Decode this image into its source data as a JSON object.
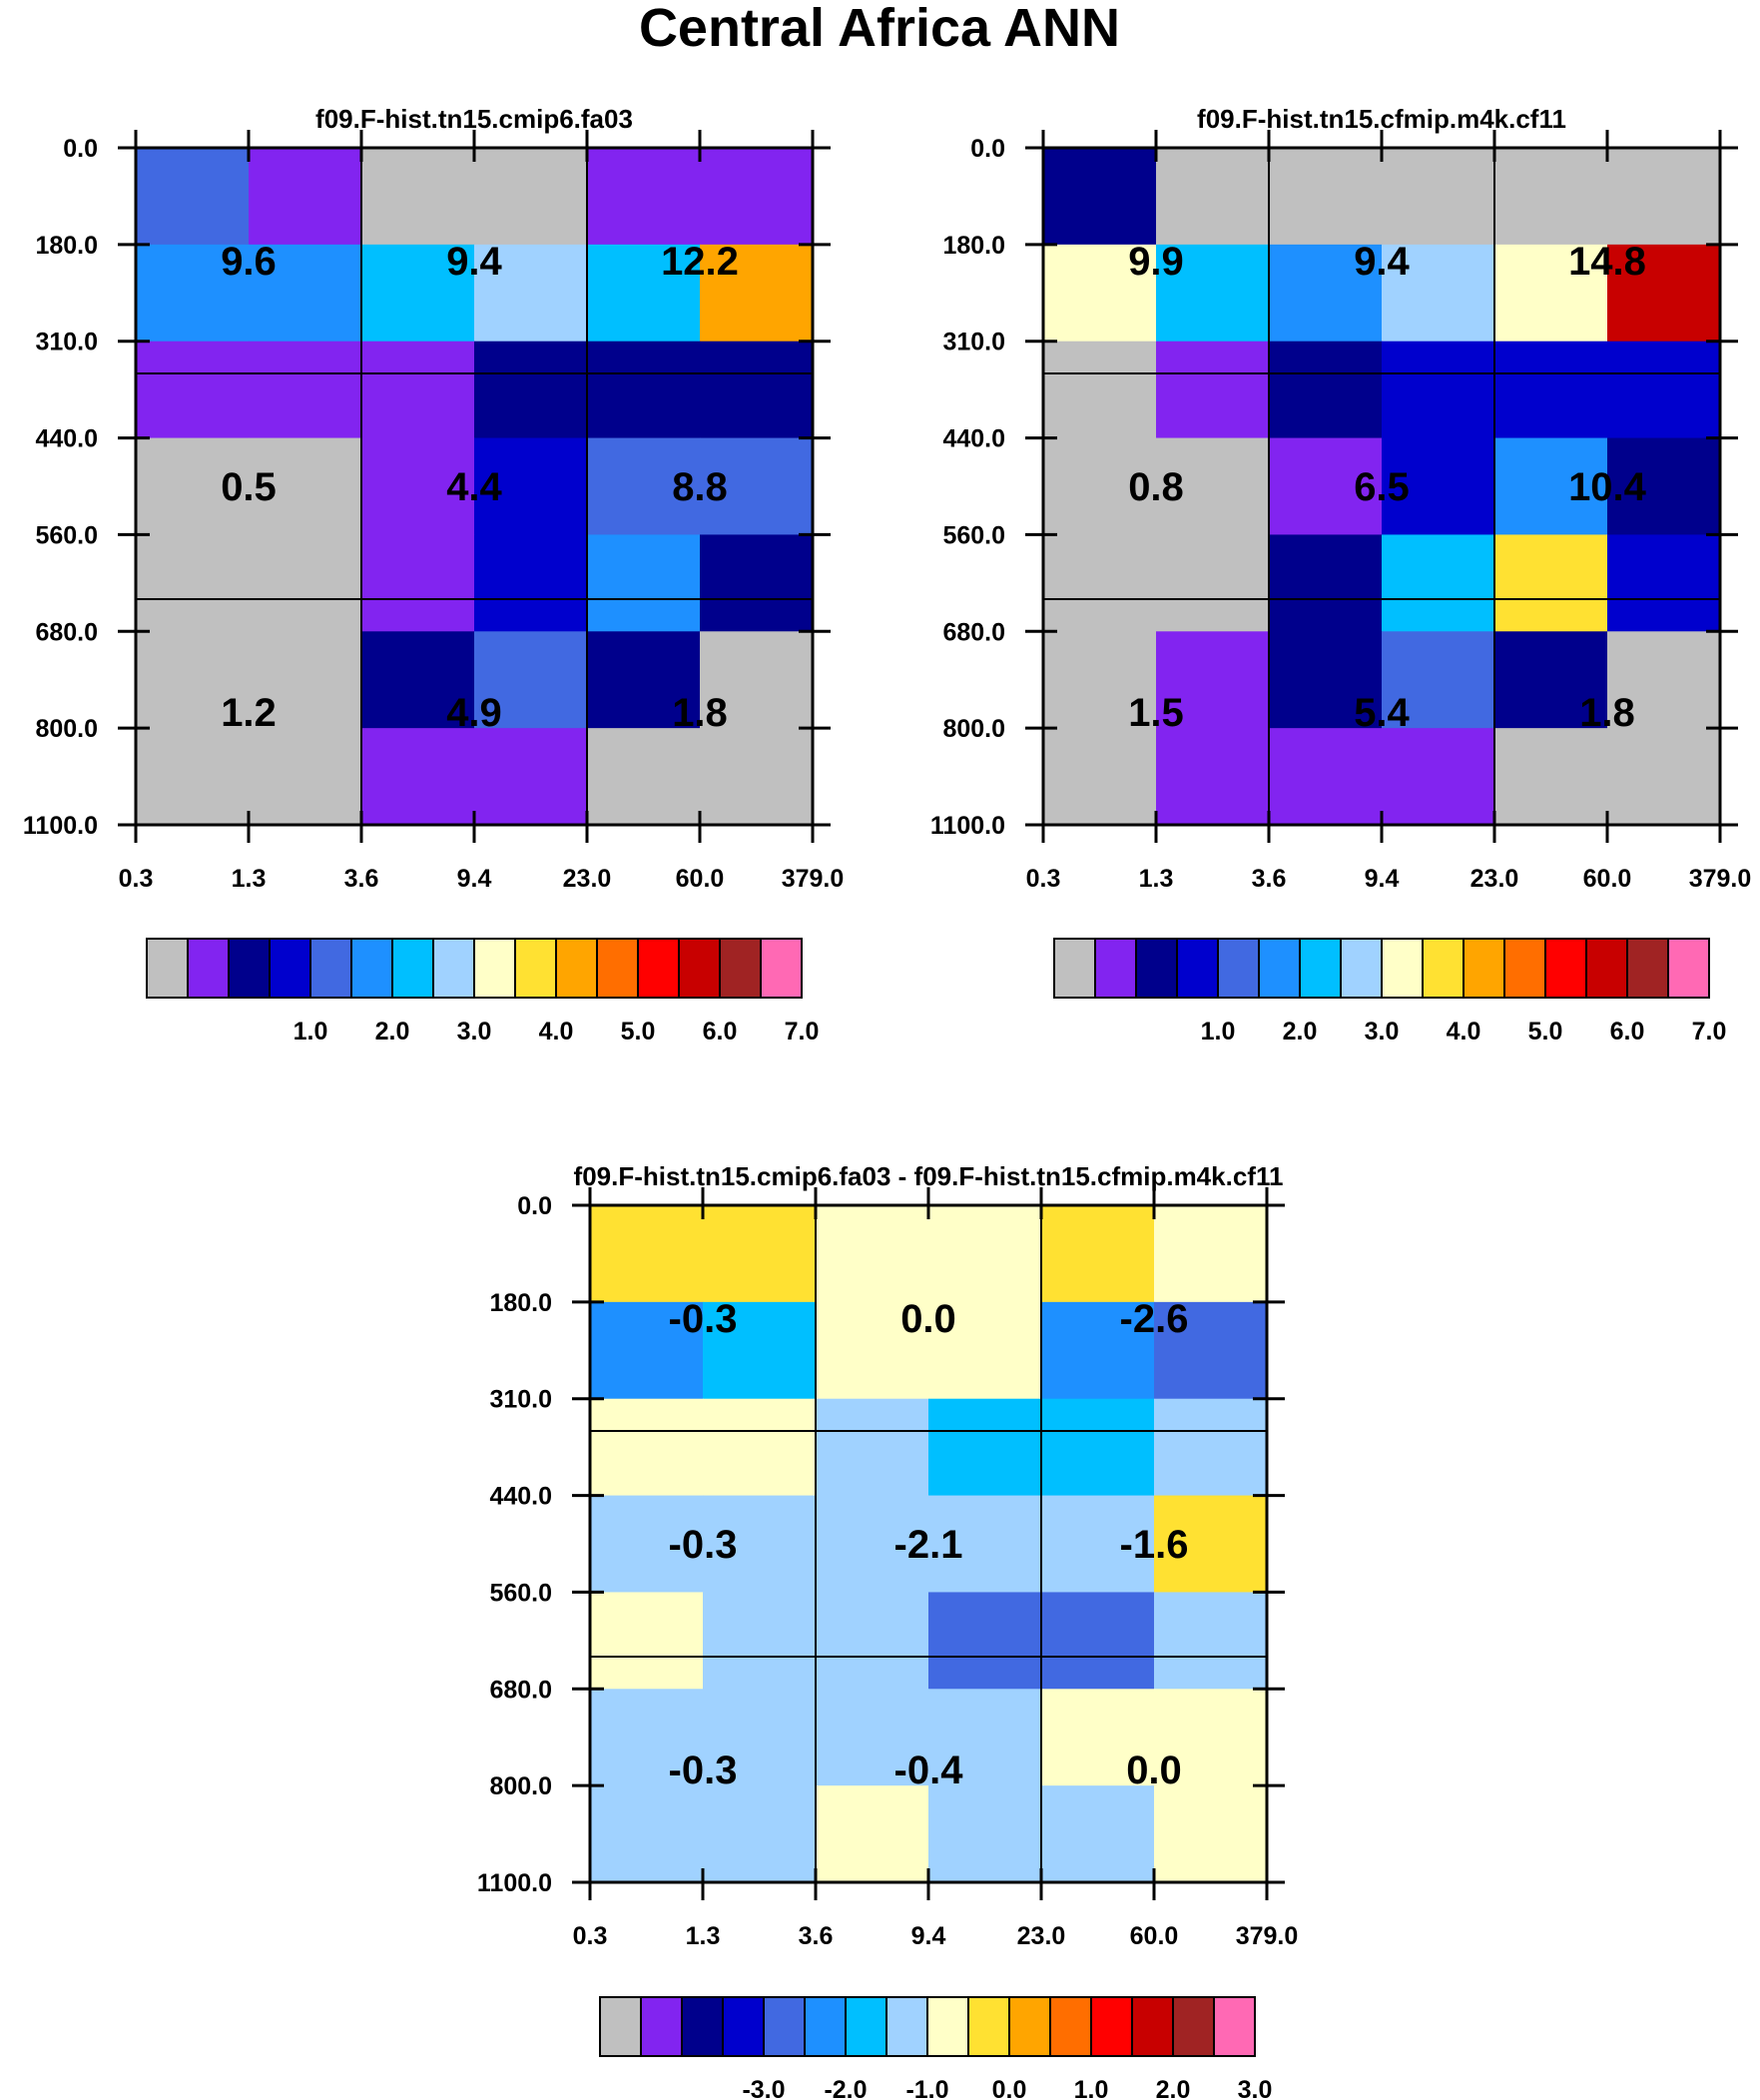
{
  "title": "Central Africa ANN",
  "palette": [
    "#c0c0c0",
    "#8224f0",
    "#00008c",
    "#0000cd",
    "#4169e1",
    "#1e90ff",
    "#00bfff",
    "#a0d2ff",
    "#ffffc8",
    "#ffe132",
    "#ffa500",
    "#ff6e00",
    "#ff0000",
    "#c80000",
    "#a02323",
    "#ff69b4"
  ],
  "chart_data": [
    {
      "type": "heatmap",
      "title": "f09.F-hist.tn15.cmip6.fa03",
      "xticks": [
        "0.3",
        "1.3",
        "3.6",
        "9.4",
        "23.0",
        "60.0",
        "379.0"
      ],
      "yticks": [
        "0.0",
        "180.0",
        "310.0",
        "440.0",
        "560.0",
        "680.0",
        "800.0",
        "1100.0"
      ],
      "cells": [
        [
          4,
          1,
          0,
          0,
          1,
          1
        ],
        [
          5,
          5,
          6,
          7,
          6,
          10
        ],
        [
          1,
          1,
          1,
          2,
          2,
          2
        ],
        [
          0,
          0,
          1,
          3,
          4,
          4
        ],
        [
          0,
          0,
          1,
          3,
          5,
          2
        ],
        [
          0,
          0,
          2,
          4,
          2,
          0
        ],
        [
          0,
          0,
          1,
          1,
          0,
          0
        ]
      ],
      "labels": [
        [
          "9.6",
          "9.4",
          "12.2"
        ],
        [
          "0.5",
          "4.4",
          "8.8"
        ],
        [
          "1.2",
          "4.9",
          "1.8"
        ]
      ],
      "colorbar_ticks": [
        "1.0",
        "2.0",
        "3.0",
        "4.0",
        "5.0",
        "6.0",
        "7.0"
      ]
    },
    {
      "type": "heatmap",
      "title": "f09.F-hist.tn15.cfmip.m4k.cf11",
      "xticks": [
        "0.3",
        "1.3",
        "3.6",
        "9.4",
        "23.0",
        "60.0",
        "379.0"
      ],
      "yticks": [
        "0.0",
        "180.0",
        "310.0",
        "440.0",
        "560.0",
        "680.0",
        "800.0",
        "1100.0"
      ],
      "cells": [
        [
          2,
          0,
          0,
          0,
          0,
          0
        ],
        [
          8,
          6,
          5,
          7,
          8,
          13
        ],
        [
          0,
          1,
          2,
          3,
          3,
          3
        ],
        [
          0,
          0,
          1,
          3,
          5,
          2
        ],
        [
          0,
          0,
          2,
          6,
          9,
          3
        ],
        [
          0,
          1,
          2,
          4,
          2,
          0
        ],
        [
          0,
          1,
          1,
          1,
          0,
          0
        ]
      ],
      "labels": [
        [
          "9.9",
          "9.4",
          "14.8"
        ],
        [
          "0.8",
          "6.5",
          "10.4"
        ],
        [
          "1.5",
          "5.4",
          "1.8"
        ]
      ],
      "colorbar_ticks": [
        "1.0",
        "2.0",
        "3.0",
        "4.0",
        "5.0",
        "6.0",
        "7.0"
      ]
    },
    {
      "type": "heatmap",
      "title": "f09.F-hist.tn15.cmip6.fa03 - f09.F-hist.tn15.cfmip.m4k.cf11",
      "xticks": [
        "0.3",
        "1.3",
        "3.6",
        "9.4",
        "23.0",
        "60.0",
        "379.0"
      ],
      "yticks": [
        "0.0",
        "180.0",
        "310.0",
        "440.0",
        "560.0",
        "680.0",
        "800.0",
        "1100.0"
      ],
      "cells": [
        [
          9,
          9,
          8,
          8,
          9,
          8
        ],
        [
          5,
          6,
          8,
          8,
          5,
          4
        ],
        [
          8,
          8,
          7,
          6,
          6,
          7
        ],
        [
          7,
          7,
          7,
          7,
          7,
          9
        ],
        [
          8,
          7,
          7,
          4,
          4,
          7
        ],
        [
          7,
          7,
          7,
          7,
          8,
          8
        ],
        [
          7,
          7,
          8,
          7,
          7,
          8
        ]
      ],
      "labels": [
        [
          "-0.3",
          "0.0",
          "-2.6"
        ],
        [
          "-0.3",
          "-2.1",
          "-1.6"
        ],
        [
          "-0.3",
          "-0.4",
          "0.0"
        ]
      ],
      "colorbar_ticks": [
        "-3.0",
        "-2.0",
        "-1.0",
        "0.0",
        "1.0",
        "2.0",
        "3.0"
      ]
    }
  ]
}
